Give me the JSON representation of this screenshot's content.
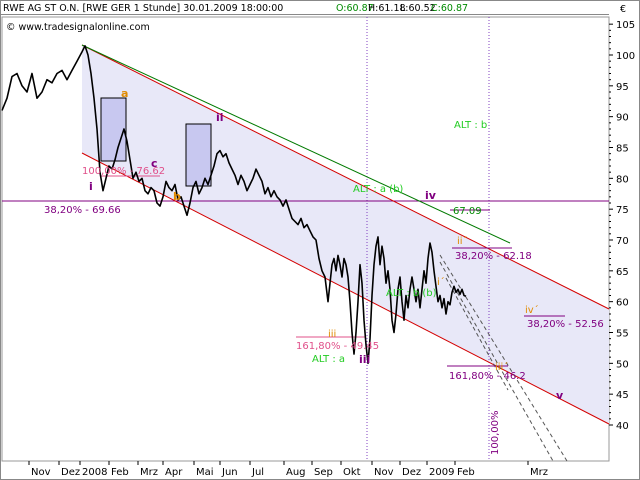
{
  "header": {
    "symbol": "RWE AG ST O.N. [RWE GER  1 Stunde] 30.01.2009 18:00:00",
    "open": "O:60.87",
    "high": "H:61.18",
    "low": "L:60.52",
    "close": "C:60.87",
    "watermark": "© www.tradesignalonline.com",
    "currency_symbol": "€"
  },
  "colors": {
    "price": "#000000",
    "red_channel": "#d40000",
    "green_line": "#007a00",
    "fib_purple": "#800080",
    "orange": "#e08a00",
    "light_green": "#22cc22",
    "pink": "#e0508a",
    "box_fill": "#c8c8f0",
    "channel_fill": "#e8e8f8"
  },
  "chart_data": {
    "type": "line",
    "title": "",
    "xlabel": "",
    "ylabel": "",
    "ylim": [
      37.5,
      106.5
    ],
    "grid": false,
    "y_ticks": [
      100,
      95,
      90,
      85,
      80,
      75,
      70,
      65,
      60,
      55,
      50,
      45,
      40
    ],
    "y_tick_labels": [
      "100",
      "95",
      "90",
      "85",
      "80",
      "75",
      "70",
      "65",
      "60",
      "55",
      "50",
      "45",
      "40"
    ],
    "y_tick_105": "105",
    "x_tick_labels": [
      "Nov",
      "Dez",
      "2008",
      "Feb",
      "Mrz",
      "Apr",
      "Mai",
      "Jun",
      "Jul",
      "Aug",
      "Sep",
      "Okt",
      "Nov",
      "Dez",
      "2009",
      "Feb",
      "Mrz"
    ],
    "series": [
      {
        "values": [
          [
            0,
            91
          ],
          [
            5,
            93
          ],
          [
            10,
            96.5
          ],
          [
            15,
            97
          ],
          [
            20,
            95
          ],
          [
            25,
            94
          ],
          [
            30,
            97
          ],
          [
            35,
            93
          ],
          [
            40,
            94
          ],
          [
            45,
            96
          ],
          [
            50,
            95.5
          ],
          [
            55,
            97
          ],
          [
            60,
            97.5
          ],
          [
            65,
            96
          ],
          [
            70,
            97.5
          ],
          [
            75,
            99
          ],
          [
            80,
            100.5
          ],
          [
            83,
            101.5
          ],
          [
            86,
            100
          ],
          [
            89,
            97
          ],
          [
            92,
            93
          ],
          [
            95,
            88
          ],
          [
            98,
            81
          ],
          [
            101,
            78
          ],
          [
            104,
            80
          ],
          [
            107,
            82
          ],
          [
            110,
            81.5
          ],
          [
            113,
            83
          ],
          [
            116,
            85
          ],
          [
            119,
            86.5
          ],
          [
            122,
            88
          ],
          [
            125,
            86
          ],
          [
            128,
            83
          ],
          [
            131,
            80
          ],
          [
            134,
            81
          ],
          [
            137,
            79.5
          ],
          [
            140,
            80
          ],
          [
            143,
            78
          ],
          [
            146,
            77.5
          ],
          [
            149,
            78.5
          ],
          [
            152,
            78
          ],
          [
            155,
            76
          ],
          [
            158,
            75.5
          ],
          [
            161,
            77
          ],
          [
            164,
            79.5
          ],
          [
            167,
            78.5
          ],
          [
            170,
            78
          ],
          [
            173,
            79
          ],
          [
            176,
            76.5
          ],
          [
            179,
            77
          ],
          [
            182,
            75.5
          ],
          [
            185,
            74
          ],
          [
            188,
            76
          ],
          [
            191,
            78.5
          ],
          [
            194,
            79.5
          ],
          [
            197,
            77.5
          ],
          [
            200,
            78.5
          ],
          [
            203,
            80
          ],
          [
            206,
            79
          ],
          [
            209,
            80.5
          ],
          [
            212,
            82
          ],
          [
            215,
            84
          ],
          [
            218,
            84.5
          ],
          [
            221,
            83.5
          ],
          [
            224,
            84
          ],
          [
            227,
            82.5
          ],
          [
            230,
            81.5
          ],
          [
            233,
            80.5
          ],
          [
            236,
            79
          ],
          [
            239,
            80.5
          ],
          [
            242,
            79.5
          ],
          [
            245,
            78
          ],
          [
            248,
            79
          ],
          [
            251,
            80
          ],
          [
            254,
            81.5
          ],
          [
            257,
            80.5
          ],
          [
            260,
            79.5
          ],
          [
            263,
            77.5
          ],
          [
            266,
            78.5
          ],
          [
            269,
            77
          ],
          [
            272,
            78
          ],
          [
            275,
            77
          ],
          [
            278,
            76.5
          ],
          [
            281,
            75.5
          ],
          [
            284,
            76.5
          ],
          [
            287,
            75
          ],
          [
            290,
            73.5
          ],
          [
            293,
            73
          ],
          [
            296,
            72.5
          ],
          [
            299,
            73.5
          ],
          [
            302,
            72
          ],
          [
            305,
            72.5
          ],
          [
            308,
            71.5
          ],
          [
            311,
            70.5
          ],
          [
            314,
            70
          ],
          [
            317,
            67
          ],
          [
            320,
            65
          ],
          [
            323,
            64
          ],
          [
            326,
            60
          ],
          [
            328,
            63
          ],
          [
            330,
            66
          ],
          [
            332,
            67
          ],
          [
            334,
            65
          ],
          [
            336,
            67.5
          ],
          [
            338,
            66
          ],
          [
            340,
            64
          ],
          [
            342,
            67
          ],
          [
            344,
            66
          ],
          [
            346,
            64
          ],
          [
            348,
            60
          ],
          [
            350,
            55
          ],
          [
            352,
            51.5
          ],
          [
            354,
            55
          ],
          [
            356,
            60
          ],
          [
            358,
            66
          ],
          [
            360,
            63
          ],
          [
            362,
            57
          ],
          [
            364,
            53
          ],
          [
            366,
            50
          ],
          [
            368,
            54
          ],
          [
            370,
            61
          ],
          [
            372,
            66
          ],
          [
            374,
            69
          ],
          [
            376,
            70.5
          ],
          [
            378,
            66
          ],
          [
            380,
            69
          ],
          [
            382,
            67
          ],
          [
            384,
            63
          ],
          [
            386,
            65
          ],
          [
            388,
            62
          ],
          [
            390,
            57
          ],
          [
            392,
            55
          ],
          [
            394,
            58
          ],
          [
            396,
            62
          ],
          [
            398,
            64
          ],
          [
            400,
            60
          ],
          [
            402,
            57
          ],
          [
            404,
            61
          ],
          [
            406,
            59
          ],
          [
            408,
            62
          ],
          [
            410,
            64
          ],
          [
            412,
            62
          ],
          [
            414,
            60
          ],
          [
            416,
            62
          ],
          [
            418,
            59
          ],
          [
            420,
            62
          ],
          [
            422,
            65
          ],
          [
            424,
            63
          ],
          [
            426,
            67
          ],
          [
            428,
            69.5
          ],
          [
            430,
            68
          ],
          [
            432,
            65
          ],
          [
            434,
            62.5
          ],
          [
            436,
            60
          ],
          [
            438,
            61
          ],
          [
            440,
            59
          ],
          [
            442,
            60.5
          ],
          [
            444,
            58
          ],
          [
            446,
            60
          ],
          [
            448,
            59.5
          ],
          [
            450,
            61.5
          ],
          [
            452,
            62.5
          ],
          [
            454,
            61.5
          ],
          [
            456,
            62
          ],
          [
            458,
            61.2
          ],
          [
            460,
            62
          ],
          [
            462,
            61
          ],
          [
            464,
            60.87
          ]
        ]
      }
    ],
    "annotations": {
      "fib_100": "100,00% - 76.62",
      "fib_38_left": "38,20% - 69.66",
      "fib_67": "67.09",
      "fib_38_mid": "38,20% - 62.18",
      "fib_38_right": "38,20% - 52.56",
      "fib_161_a": "161,80% - 49.45",
      "fib_161_b": "161,80% - 46.2",
      "fib_100_vert": "100,00%",
      "alt_a": "ALT : a",
      "alt_a_b": "ALT : a (b)",
      "alt_b_b": "ALT : b (b)",
      "alt_b": "ALT : b",
      "wave_i": "i",
      "wave_ii": "ii",
      "wave_iii": "iii",
      "wave_iv": "iv",
      "wave_v": "v",
      "wave_a": "a",
      "wave_b": "b",
      "wave_c": "c",
      "wave_iii_small": "iii",
      "wave_ii_small": "ii´",
      "wave_i_small": "i´",
      "wave_iii_proj": "iii´",
      "wave_iv_proj": "iv´"
    }
  }
}
